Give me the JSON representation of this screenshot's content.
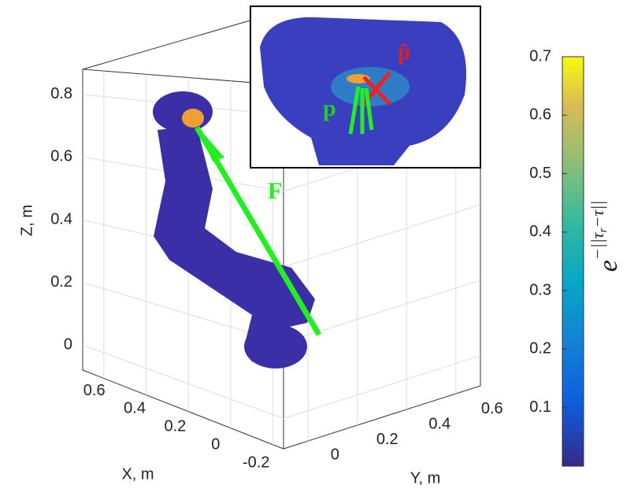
{
  "chart_data": {
    "type": "scatter3d",
    "xlabel": "X, m",
    "ylabel": "Y, m",
    "zlabel": "Z, m",
    "xlim": [
      0.7,
      -0.25
    ],
    "xticks": [
      0.6,
      0.4,
      0.2,
      0,
      -0.2
    ],
    "ylim": [
      -0.1,
      0.7
    ],
    "yticks": [
      0,
      0.2,
      0.4,
      0.6
    ],
    "zlim": [
      -0.08,
      0.88
    ],
    "zticks": [
      0,
      0.2,
      0.4,
      0.6,
      0.8
    ],
    "grid": true,
    "colorbar": {
      "clim": [
        0,
        0.7
      ],
      "ticks": [
        0.1,
        0.2,
        0.3,
        0.4,
        0.5,
        0.6,
        0.7
      ],
      "label": "e",
      "label_exponent": [
        "−||τ",
        "r",
        "−τ||"
      ]
    },
    "annotations": [
      "F",
      "p",
      "p̂"
    ]
  }
}
